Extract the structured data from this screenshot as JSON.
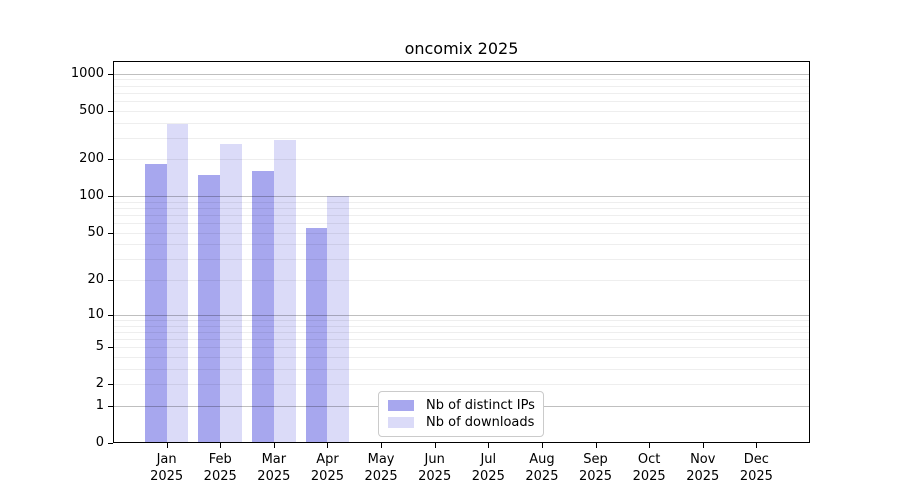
{
  "title": "oncomix 2025",
  "legend": {
    "items": [
      {
        "label": "Nb of distinct IPs",
        "color": "#a7a7ee"
      },
      {
        "label": "Nb of downloads",
        "color": "#dbdbf8"
      }
    ]
  },
  "colors": {
    "bar_ips": "#a7a7ee",
    "bar_downloads": "#dbdbf8",
    "grid_major": "rgba(0,0,0,0.25)",
    "grid_minor": "rgba(0,0,0,0.065)",
    "axis": "#000000",
    "text": "#000000",
    "legend_border": "#cbcbcb",
    "background": "#ffffff"
  },
  "chart_data": {
    "type": "bar",
    "title": "oncomix 2025",
    "categories": [
      "Jan 2025",
      "Feb 2025",
      "Mar 2025",
      "Apr 2025",
      "May 2025",
      "Jun 2025",
      "Jul 2025",
      "Aug 2025",
      "Sep 2025",
      "Oct 2025",
      "Nov 2025",
      "Dec 2025"
    ],
    "series": [
      {
        "name": "Nb of distinct IPs",
        "color": "#a7a7ee",
        "values": [
          185,
          150,
          160,
          55,
          null,
          null,
          null,
          null,
          null,
          null,
          null,
          null
        ]
      },
      {
        "name": "Nb of downloads",
        "color": "#dbdbf8",
        "values": [
          390,
          265,
          290,
          100,
          null,
          null,
          null,
          null,
          null,
          null,
          null,
          null
        ]
      }
    ],
    "y_scale": "log10(1+y), zero at baseline",
    "y_ticks": [
      1000,
      500,
      200,
      100,
      50,
      20,
      10,
      5,
      2,
      1,
      0
    ],
    "y_major_gridlines": [
      1,
      10,
      100,
      1000
    ],
    "y_minor_gridlines": [
      2,
      3,
      4,
      5,
      6,
      7,
      8,
      9,
      20,
      30,
      40,
      50,
      60,
      70,
      80,
      90,
      200,
      300,
      400,
      500,
      600,
      700,
      800,
      900
    ],
    "y_axis_max": 1267,
    "ylim": [
      0,
      1267
    ],
    "grid": true,
    "legend_position": "lower center"
  }
}
